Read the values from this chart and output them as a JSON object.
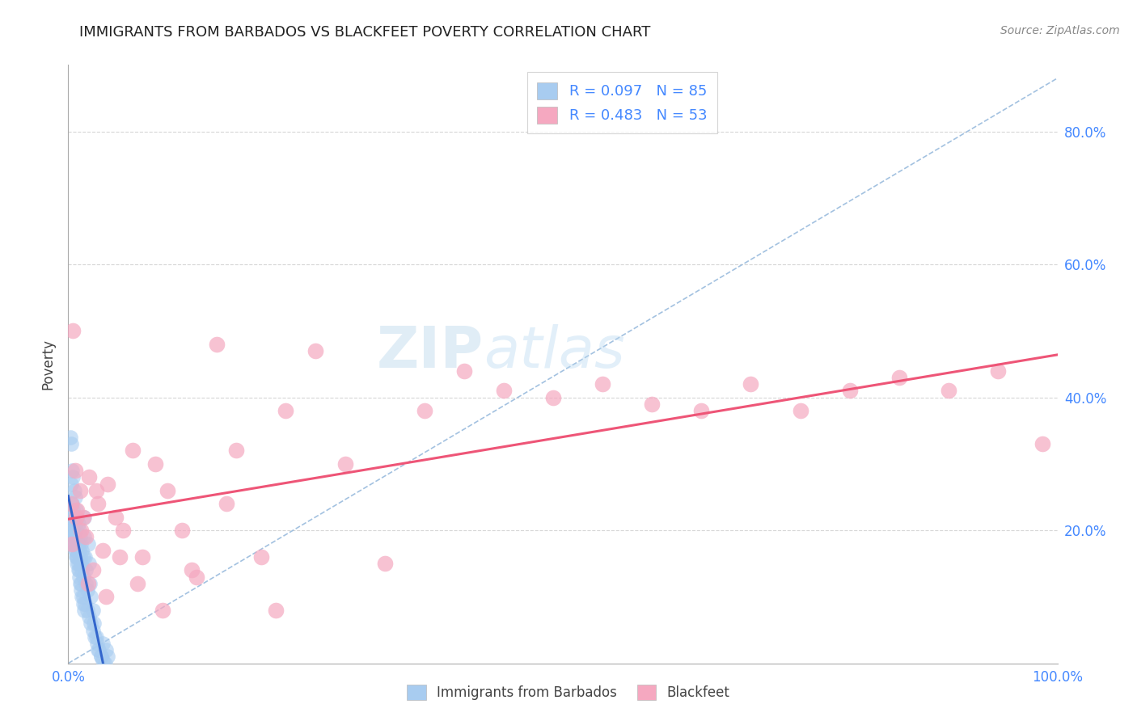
{
  "title": "IMMIGRANTS FROM BARBADOS VS BLACKFEET POVERTY CORRELATION CHART",
  "source": "Source: ZipAtlas.com",
  "ylabel": "Poverty",
  "legend_label1": "Immigrants from Barbados",
  "legend_label2": "Blackfeet",
  "R1": 0.097,
  "N1": 85,
  "R2": 0.483,
  "N2": 53,
  "color1": "#a8ccf0",
  "color2": "#f5a8c0",
  "trendline1_color": "#3366cc",
  "trendline2_color": "#ee5577",
  "diag_color": "#99bbdd",
  "xlim": [
    0,
    1
  ],
  "ylim": [
    0,
    0.9
  ],
  "watermark_zip": "ZIP",
  "watermark_atlas": "atlas",
  "title_color": "#222222",
  "title_fontsize": 13,
  "axis_label_color": "#444444",
  "tick_color": "#4488ff",
  "legend_text_color": "#4488ff",
  "legend_fontsize": 13,
  "background_color": "#ffffff",
  "blue_x": [
    0.002,
    0.003,
    0.003,
    0.004,
    0.004,
    0.004,
    0.005,
    0.005,
    0.005,
    0.005,
    0.006,
    0.006,
    0.006,
    0.007,
    0.007,
    0.007,
    0.008,
    0.008,
    0.008,
    0.009,
    0.009,
    0.009,
    0.01,
    0.01,
    0.01,
    0.011,
    0.011,
    0.012,
    0.012,
    0.013,
    0.013,
    0.014,
    0.014,
    0.015,
    0.015,
    0.016,
    0.016,
    0.017,
    0.018,
    0.018,
    0.019,
    0.02,
    0.021,
    0.022,
    0.023,
    0.025,
    0.026,
    0.028,
    0.03,
    0.033,
    0.035,
    0.038,
    0.04,
    0.003,
    0.004,
    0.005,
    0.006,
    0.007,
    0.008,
    0.009,
    0.01,
    0.011,
    0.012,
    0.013,
    0.014,
    0.015,
    0.016,
    0.003,
    0.005,
    0.007,
    0.009,
    0.011,
    0.013,
    0.015,
    0.017,
    0.019,
    0.021,
    0.023,
    0.025,
    0.027,
    0.029,
    0.031,
    0.033,
    0.035,
    0.037
  ],
  "blue_y": [
    0.34,
    0.33,
    0.27,
    0.29,
    0.24,
    0.22,
    0.28,
    0.23,
    0.2,
    0.18,
    0.26,
    0.22,
    0.19,
    0.25,
    0.21,
    0.18,
    0.23,
    0.2,
    0.17,
    0.22,
    0.19,
    0.16,
    0.21,
    0.18,
    0.15,
    0.2,
    0.17,
    0.19,
    0.16,
    0.18,
    0.15,
    0.17,
    0.14,
    0.16,
    0.13,
    0.22,
    0.19,
    0.16,
    0.14,
    0.12,
    0.11,
    0.18,
    0.15,
    0.12,
    0.1,
    0.08,
    0.06,
    0.04,
    0.02,
    0.01,
    0.03,
    0.02,
    0.01,
    0.2,
    0.21,
    0.19,
    0.18,
    0.17,
    0.16,
    0.15,
    0.14,
    0.13,
    0.12,
    0.11,
    0.1,
    0.09,
    0.08,
    0.22,
    0.2,
    0.18,
    0.16,
    0.14,
    0.12,
    0.1,
    0.09,
    0.08,
    0.07,
    0.06,
    0.05,
    0.04,
    0.03,
    0.02,
    0.01,
    0.005,
    0.0
  ],
  "pink_x": [
    0.003,
    0.005,
    0.007,
    0.009,
    0.012,
    0.015,
    0.018,
    0.021,
    0.025,
    0.03,
    0.035,
    0.04,
    0.048,
    0.055,
    0.065,
    0.075,
    0.088,
    0.1,
    0.115,
    0.13,
    0.15,
    0.17,
    0.195,
    0.22,
    0.25,
    0.28,
    0.32,
    0.36,
    0.4,
    0.44,
    0.49,
    0.54,
    0.59,
    0.64,
    0.69,
    0.74,
    0.79,
    0.84,
    0.89,
    0.94,
    0.985,
    0.004,
    0.008,
    0.013,
    0.02,
    0.028,
    0.038,
    0.052,
    0.07,
    0.095,
    0.125,
    0.16,
    0.21
  ],
  "pink_y": [
    0.24,
    0.5,
    0.29,
    0.23,
    0.26,
    0.22,
    0.19,
    0.28,
    0.14,
    0.24,
    0.17,
    0.27,
    0.22,
    0.2,
    0.32,
    0.16,
    0.3,
    0.26,
    0.2,
    0.13,
    0.48,
    0.32,
    0.16,
    0.38,
    0.47,
    0.3,
    0.15,
    0.38,
    0.44,
    0.41,
    0.4,
    0.42,
    0.39,
    0.38,
    0.42,
    0.38,
    0.41,
    0.43,
    0.41,
    0.44,
    0.33,
    0.18,
    0.22,
    0.2,
    0.12,
    0.26,
    0.1,
    0.16,
    0.12,
    0.08,
    0.14,
    0.24,
    0.08
  ]
}
